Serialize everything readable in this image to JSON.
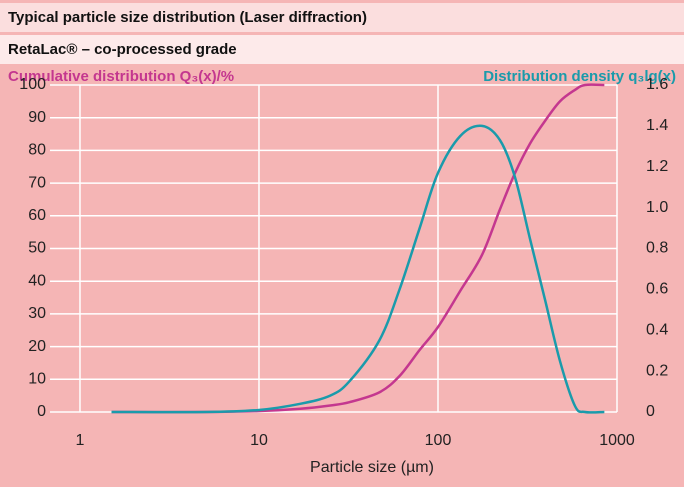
{
  "chart_data": {
    "type": "line",
    "title": "Typical particle size distribution (Laser diffraction)",
    "subtitle": "RetaLac® – co-processed grade",
    "ylabel": "Cumulative distribution Q₃(x)/%",
    "y2label": "Distribution density q₃lg(x)",
    "xlabel": "Particle size (µm)",
    "xscale": "log",
    "x": [
      1.5,
      5,
      10,
      17,
      25,
      32,
      47,
      61,
      79,
      100,
      133,
      176,
      222,
      269,
      326,
      396,
      480,
      582,
      663,
      850
    ],
    "series": [
      {
        "name": "Cumulative distribution Q₃(x)/%",
        "color": "#c4378f",
        "values": [
          0,
          0,
          0.3,
          1,
          2,
          3,
          6,
          11,
          19,
          26,
          37,
          48,
          62,
          73,
          82,
          89,
          95,
          98.5,
          100,
          100
        ]
      },
      {
        "name": "Distribution density q₃lg(x)",
        "color": "#1a9bab",
        "axis": "y2",
        "values": [
          0,
          0,
          0.01,
          0.04,
          0.08,
          0.15,
          0.35,
          0.6,
          0.9,
          1.17,
          1.35,
          1.4,
          1.33,
          1.15,
          0.85,
          0.55,
          0.25,
          0.03,
          0,
          0
        ]
      }
    ],
    "xlim": [
      0.68,
      1000
    ],
    "xticks": [
      1,
      10,
      100,
      1000
    ],
    "ylim": [
      0,
      100
    ],
    "yticks": [
      0,
      10,
      20,
      30,
      40,
      50,
      60,
      70,
      80,
      90,
      100
    ],
    "y2lim": [
      0,
      1.6
    ],
    "y2ticks": [
      0,
      0.2,
      0.4,
      0.6,
      0.8,
      {
        "value": 1,
        "label": "1.0"
      },
      1.2,
      1.4,
      1.6
    ],
    "grid": true
  }
}
